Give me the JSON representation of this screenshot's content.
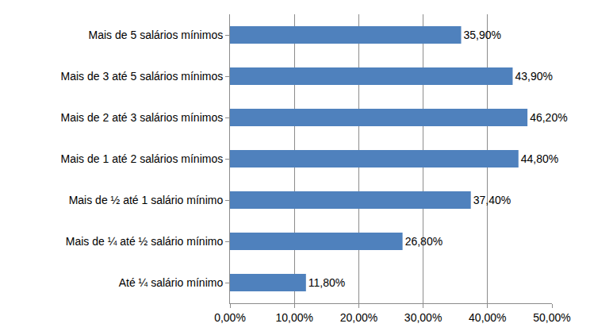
{
  "chart_data": {
    "type": "bar",
    "orientation": "horizontal",
    "categories": [
      "Mais de 5 salários mínimos",
      "Mais de 3 até 5 salários mínimos",
      "Mais de 2 até 3 salários mínimos",
      "Mais de 1 até 2 salários mínimos",
      "Mais de ½ até 1 salário mínimo",
      "Mais de ¼ até ½ salário mínimo",
      "Até ¼ salário mínimo"
    ],
    "values": [
      35.9,
      43.9,
      46.2,
      44.8,
      37.4,
      26.8,
      11.8
    ],
    "value_labels": [
      "35,90%",
      "43,90%",
      "46,20%",
      "44,80%",
      "37,40%",
      "26,80%",
      "11,80%"
    ],
    "data_labels": true,
    "color": "#4f81bd",
    "xlim": [
      0,
      50
    ],
    "xticks": [
      {
        "value": 0,
        "label": "0,00%"
      },
      {
        "value": 10,
        "label": "10,00%"
      },
      {
        "value": 20,
        "label": "20,00%"
      },
      {
        "value": 30,
        "label": "30,00%"
      },
      {
        "value": 40,
        "label": "40,00%"
      },
      {
        "value": 50,
        "label": "50,00%"
      }
    ],
    "grid": true
  }
}
